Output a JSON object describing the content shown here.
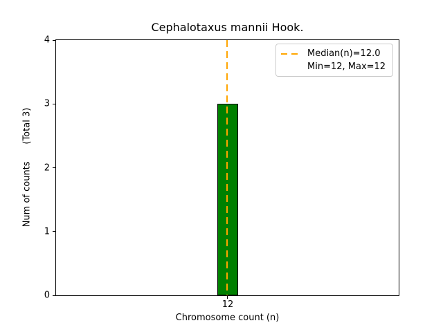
{
  "chart_data": {
    "type": "bar",
    "title": "Cephalotaxus mannii Hook.",
    "xlabel": "Chromosome count (n)",
    "ylabel": "Num of counts      (Total 3)",
    "categories": [
      "12"
    ],
    "values": [
      3
    ],
    "ylim": [
      0,
      4
    ],
    "yticks": [
      0,
      1,
      2,
      3,
      4
    ],
    "xticks": [
      "12"
    ],
    "grid": false,
    "median_line": {
      "x": 12,
      "style": "dashed",
      "orientation": "vertical"
    },
    "legend": {
      "position": "upper right",
      "entries": [
        {
          "label": "Median(n)=12.0",
          "marker": "orange-dashed-line"
        },
        {
          "label": "Min=12, Max=12",
          "marker": "none"
        }
      ]
    },
    "colors": {
      "bar_fill": "#008000",
      "bar_edge": "#000000",
      "median_line": "#ffa500",
      "legend_border": "#cccccc",
      "axis": "#000000",
      "background": "#ffffff"
    }
  }
}
